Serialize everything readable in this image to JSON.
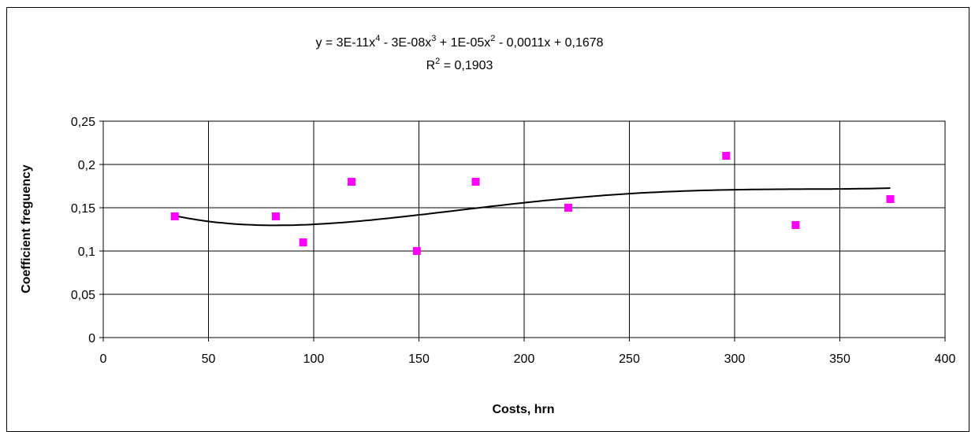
{
  "chart_data": {
    "type": "scatter",
    "title": "",
    "xlabel": "Costs, hrn",
    "ylabel": "Coefficient freguency",
    "xlim": [
      0,
      400
    ],
    "ylim": [
      0,
      0.25
    ],
    "x_ticks": [
      0,
      50,
      100,
      150,
      200,
      250,
      300,
      350,
      400
    ],
    "y_ticks": [
      0,
      0.05,
      0.1,
      0.15,
      0.2,
      0.25
    ],
    "x_tick_labels": [
      "0",
      "50",
      "100",
      "150",
      "200",
      "250",
      "300",
      "350",
      "400"
    ],
    "y_tick_labels": [
      "0",
      "0,05",
      "0,1",
      "0,15",
      "0,2",
      "0,25"
    ],
    "grid": true,
    "legend": "none",
    "marker_color": "#ff00ff",
    "trend_color": "#000000",
    "series": [
      {
        "x": [
          34,
          82,
          95,
          118,
          149,
          177,
          221,
          296,
          329,
          374
        ],
        "y": [
          0.14,
          0.14,
          0.11,
          0.18,
          0.1,
          0.18,
          0.15,
          0.21,
          0.13,
          0.16
        ]
      }
    ],
    "trendline": {
      "type": "polynomial",
      "order": 4,
      "x_range": [
        34,
        374
      ],
      "coefficients": [
        0.1678,
        -0.0011,
        1e-05,
        -3e-08,
        3e-11
      ],
      "equation_parts": [
        "y = 3E-11x",
        "4",
        " - 3E-08x",
        "3",
        " + 1E-05x",
        "2",
        " - 0,0011x + 0,1678"
      ],
      "r2_parts": [
        "R",
        "2",
        " = 0,1903"
      ]
    }
  }
}
